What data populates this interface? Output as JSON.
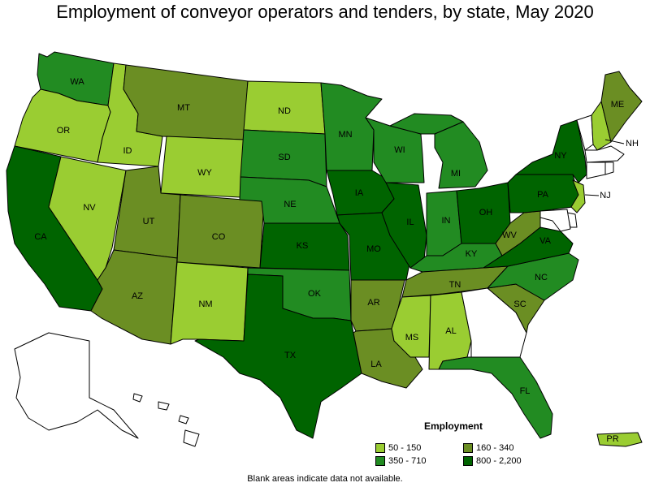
{
  "title": "Employment of conveyor operators and tenders, by state, May 2020",
  "note": "Blank areas indicate data not available.",
  "legend": {
    "title": "Employment",
    "items": [
      {
        "label": "50 - 150",
        "color": "#9ACD32"
      },
      {
        "label": "160 - 340",
        "color": "#6B8E23"
      },
      {
        "label": "350 - 710",
        "color": "#228B22"
      },
      {
        "label": "800 - 2,200",
        "color": "#006400"
      }
    ]
  },
  "colors": {
    "blank": "#FFFFFF",
    "bin1": "#9ACD32",
    "bin2": "#6B8E23",
    "bin3": "#228B22",
    "bin4": "#006400"
  },
  "states": {
    "WA": "350 - 710",
    "OR": "50 - 150",
    "CA": "800 - 2,200",
    "NV": "50 - 150",
    "ID": "50 - 150",
    "MT": "160 - 340",
    "WY": "50 - 150",
    "UT": "160 - 340",
    "AZ": "160 - 340",
    "CO": "160 - 340",
    "NM": "50 - 150",
    "ND": "50 - 150",
    "SD": "350 - 710",
    "NE": "350 - 710",
    "KS": "800 - 2,200",
    "OK": "350 - 710",
    "TX": "800 - 2,200",
    "MN": "350 - 710",
    "IA": "800 - 2,200",
    "MO": "800 - 2,200",
    "AR": "160 - 340",
    "LA": "160 - 340",
    "WI": "350 - 710",
    "IL": "800 - 2,200",
    "MI": "350 - 710",
    "IN": "350 - 710",
    "OH": "800 - 2,200",
    "KY": "350 - 710",
    "TN": "160 - 340",
    "MS": "50 - 150",
    "AL": "50 - 150",
    "GA": "",
    "FL": "350 - 710",
    "SC": "160 - 340",
    "NC": "350 - 710",
    "VA": "800 - 2,200",
    "WV": "160 - 340",
    "PA": "800 - 2,200",
    "NY": "800 - 2,200",
    "NJ": "50 - 150",
    "ME": "160 - 340",
    "NH": "50 - 150",
    "VT": "",
    "MA": "",
    "CT": "",
    "RI": "",
    "DE": "",
    "MD": "",
    "AK": "",
    "HI": "",
    "PR": "50 - 150"
  }
}
